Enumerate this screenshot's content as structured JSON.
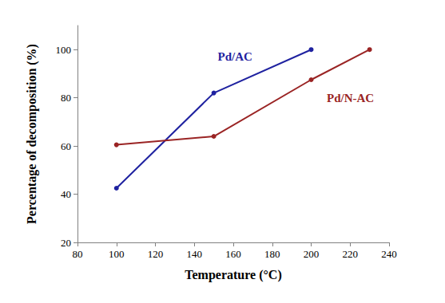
{
  "chart_data": {
    "type": "line",
    "x_label": "Temperature (°C)",
    "y_label": "Percentage of decomposition (%)",
    "series": [
      {
        "name": "Pd/AC",
        "color": "#1f22a0",
        "marker": "circle",
        "x": [
          100,
          150,
          200
        ],
        "values": [
          42.5,
          82,
          100
        ]
      },
      {
        "name": "Pd/N-AC",
        "color": "#9a2424",
        "marker": "circle",
        "x": [
          100,
          150,
          200,
          230
        ],
        "values": [
          60.5,
          64,
          87.5,
          100
        ]
      }
    ],
    "xlim": [
      80,
      240
    ],
    "xticks": [
      80,
      100,
      120,
      140,
      160,
      180,
      200,
      220,
      240
    ],
    "ylim": [
      20,
      110
    ],
    "yticks": [
      20,
      40,
      60,
      80,
      100
    ],
    "grid": false
  }
}
